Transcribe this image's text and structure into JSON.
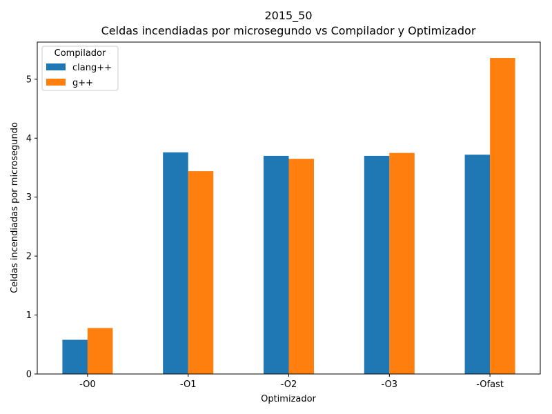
{
  "chart_data": {
    "type": "bar",
    "title": "2015_50",
    "subtitle": "Celdas incendiadas por microsegundo vs Compilador y Optimizador",
    "xlabel": "Optimizador",
    "ylabel": "Celdas incendiadas por microsegundo",
    "categories": [
      "-O0",
      "-O1",
      "-O2",
      "-O3",
      "-Ofast"
    ],
    "series": [
      {
        "name": "clang++",
        "color": "#1f77b4",
        "values": [
          0.58,
          3.76,
          3.7,
          3.7,
          3.72
        ]
      },
      {
        "name": "g++",
        "color": "#ff7f0e",
        "values": [
          0.78,
          3.44,
          3.65,
          3.75,
          5.36
        ]
      }
    ],
    "ylim": [
      0,
      5.63
    ],
    "yticks": [
      0,
      1,
      2,
      3,
      4,
      5
    ],
    "legend": {
      "title": "Compilador",
      "position": "top-left"
    },
    "grid": false
  }
}
